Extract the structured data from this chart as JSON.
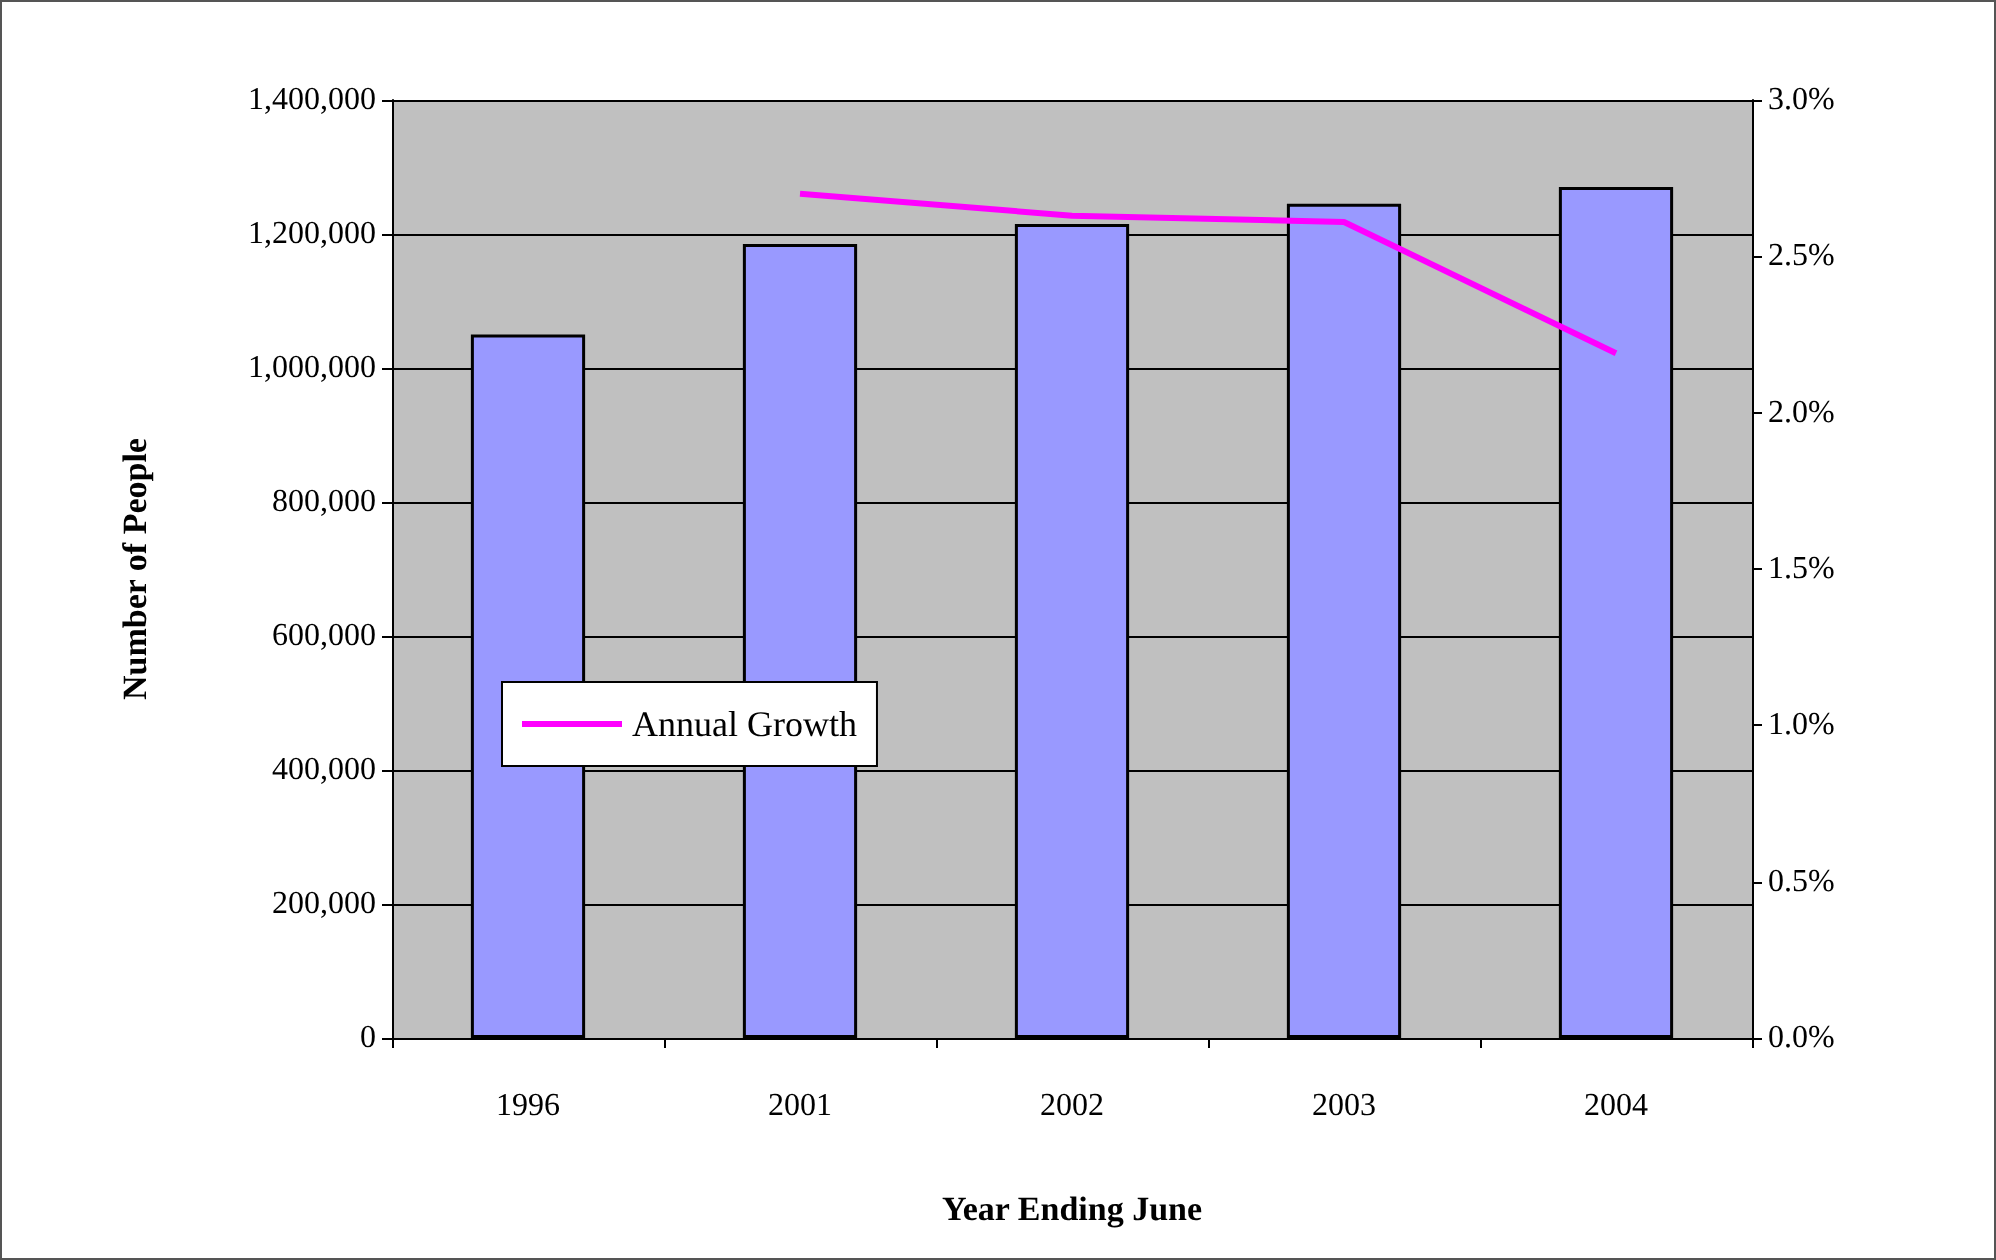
{
  "chart_data": {
    "type": "bar",
    "xlabel": "Year Ending June",
    "ylabel": "Number of People",
    "categories": [
      "1996",
      "2001",
      "2002",
      "2003",
      "2004"
    ],
    "series": [
      {
        "color": "#9999ff",
        "values": [
          1050000,
          1185000,
          1215000,
          1245000,
          1270000
        ]
      },
      {
        "type": "line",
        "name": "Annual Growth",
        "color": "#ff00ff",
        "axis": "y2",
        "values": [
          null,
          2.7,
          2.63,
          2.61,
          2.19
        ]
      }
    ],
    "ylim": [
      0,
      1400000
    ],
    "yticks": [
      {
        "value": 0,
        "label": "0"
      },
      {
        "value": 200000,
        "label": "200,000"
      },
      {
        "value": 400000,
        "label": "400,000"
      },
      {
        "value": 600000,
        "label": "600,000"
      },
      {
        "value": 800000,
        "label": "800,000"
      },
      {
        "value": 1000000,
        "label": "1,000,000"
      },
      {
        "value": 1200000,
        "label": "1,200,000"
      },
      {
        "value": 1400000,
        "label": "1,400,000"
      }
    ],
    "y2lim": [
      0,
      3
    ],
    "y2ticks": [
      {
        "value": 0,
        "label": "0.0%"
      },
      {
        "value": 0.5,
        "label": "0.5%"
      },
      {
        "value": 1,
        "label": "1.0%"
      },
      {
        "value": 1.5,
        "label": "1.5%"
      },
      {
        "value": 2,
        "label": "2.0%"
      },
      {
        "value": 2.5,
        "label": "2.5%"
      },
      {
        "value": 3,
        "label": "3.0%"
      }
    ],
    "grid": "y",
    "legend": "left",
    "marker": "none",
    "line_style": "solid"
  }
}
